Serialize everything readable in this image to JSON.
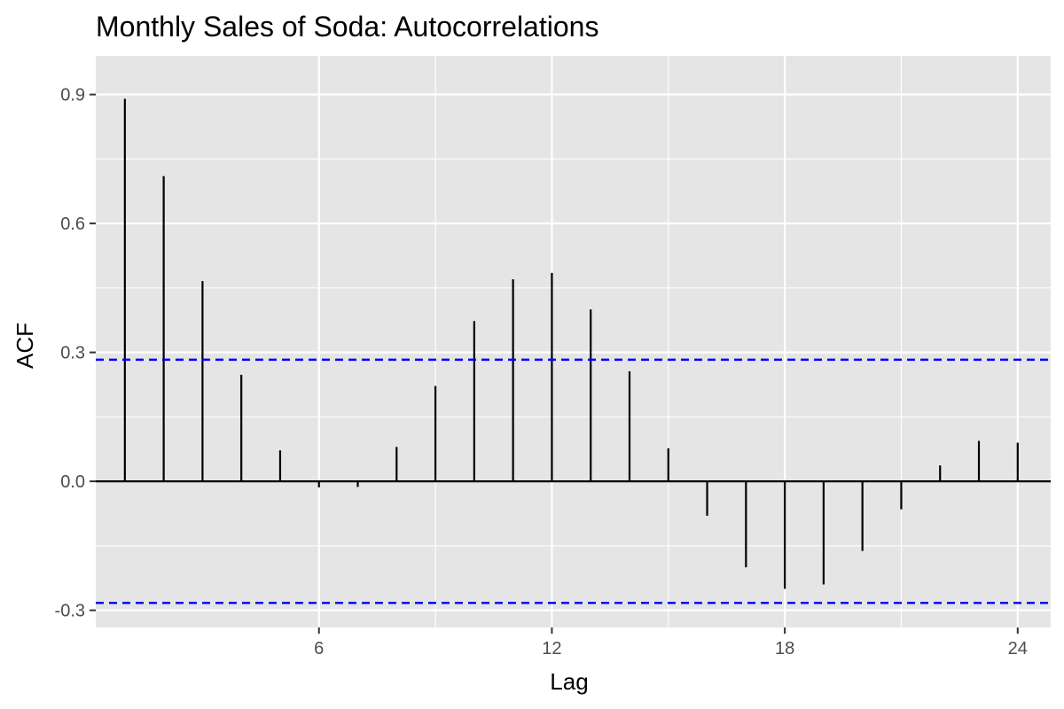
{
  "chart_data": {
    "type": "bar",
    "subtype": "acf-lollipop",
    "title": "Monthly Sales of Soda: Autocorrelations",
    "xlabel": "Lag",
    "ylabel": "ACF",
    "x": [
      1,
      2,
      3,
      4,
      5,
      6,
      7,
      8,
      9,
      10,
      11,
      12,
      13,
      14,
      15,
      16,
      17,
      18,
      19,
      20,
      21,
      22,
      23,
      24
    ],
    "values": [
      0.89,
      0.71,
      0.466,
      0.248,
      0.072,
      -0.014,
      -0.013,
      0.08,
      0.222,
      0.373,
      0.47,
      0.485,
      0.4,
      0.256,
      0.077,
      -0.08,
      -0.2,
      -0.25,
      -0.24,
      -0.162,
      -0.065,
      0.037,
      0.094,
      0.09
    ],
    "confidence_bound": 0.283,
    "xlim": [
      0.25,
      24.85
    ],
    "ylim": [
      -0.34,
      0.99
    ],
    "x_ticks": [
      6,
      12,
      18,
      24
    ],
    "x_tick_labels": [
      "6",
      "12",
      "18",
      "24"
    ],
    "y_ticks": [
      -0.3,
      0.0,
      0.3,
      0.6,
      0.9
    ],
    "y_tick_labels": [
      "-0.3",
      "0.0",
      "0.3",
      "0.6",
      "0.9"
    ],
    "grid": true,
    "colors": {
      "panel": "#e5e5e5",
      "grid": "#ffffff",
      "bars": "#000000",
      "confidence": "#0000ff",
      "tick_text": "#4d4d4d"
    }
  }
}
